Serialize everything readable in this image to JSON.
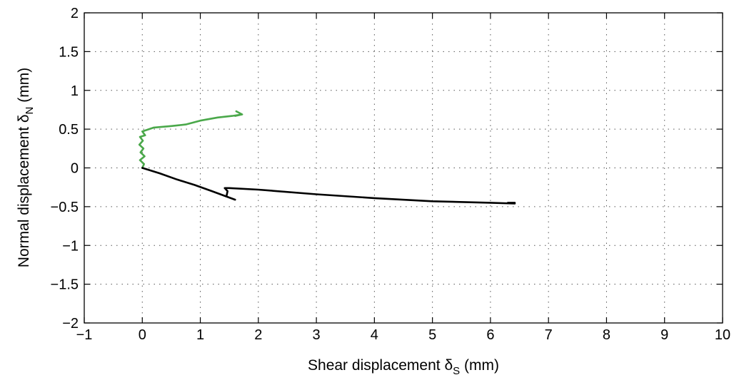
{
  "chart_data": {
    "type": "line",
    "xlabel": {
      "prefix": "Shear displacement δ",
      "sub": "S",
      "suffix": " (mm)"
    },
    "ylabel": {
      "prefix": "Normal displacement δ",
      "sub": "N",
      "suffix": " (mm)"
    },
    "xlim": [
      -1,
      10
    ],
    "ylim": [
      -2,
      2
    ],
    "x_ticks": [
      -1,
      0,
      1,
      2,
      3,
      4,
      5,
      6,
      7,
      8,
      9,
      10
    ],
    "y_ticks": [
      -2,
      -1.5,
      -1,
      -0.5,
      0,
      0.5,
      1,
      1.5,
      2
    ],
    "x_tick_labels": [
      "−1",
      "0",
      "1",
      "2",
      "3",
      "4",
      "5",
      "6",
      "7",
      "8",
      "9",
      "10"
    ],
    "y_tick_labels": [
      "−2",
      "−1.5",
      "−1",
      "−0.5",
      "0",
      "0.5",
      "1",
      "1.5",
      "2"
    ],
    "grid": true,
    "series": [
      {
        "color": "#4aa84a",
        "x": [
          0.0,
          0.03,
          -0.04,
          0.04,
          -0.03,
          0.02,
          -0.05,
          0.01,
          -0.04,
          0.05,
          0.0,
          0.2,
          0.5,
          0.75,
          1.0,
          1.3,
          1.55,
          1.72,
          1.62,
          1.72,
          1.6
        ],
        "y": [
          0.0,
          0.05,
          0.1,
          0.15,
          0.2,
          0.25,
          0.3,
          0.35,
          0.4,
          0.42,
          0.47,
          0.52,
          0.54,
          0.56,
          0.61,
          0.65,
          0.67,
          0.69,
          0.73,
          0.69,
          0.67
        ]
      },
      {
        "color": "#000000",
        "x": [
          0.0,
          0.3,
          0.6,
          0.9,
          1.2,
          1.6,
          1.45,
          1.47,
          1.42,
          1.5,
          2.0,
          3.0,
          4.0,
          5.0,
          6.0,
          6.42,
          6.3,
          6.42
        ],
        "y": [
          0.0,
          -0.07,
          -0.15,
          -0.22,
          -0.3,
          -0.41,
          -0.37,
          -0.3,
          -0.26,
          -0.26,
          -0.28,
          -0.34,
          -0.39,
          -0.43,
          -0.45,
          -0.46,
          -0.45,
          -0.45
        ]
      }
    ]
  }
}
